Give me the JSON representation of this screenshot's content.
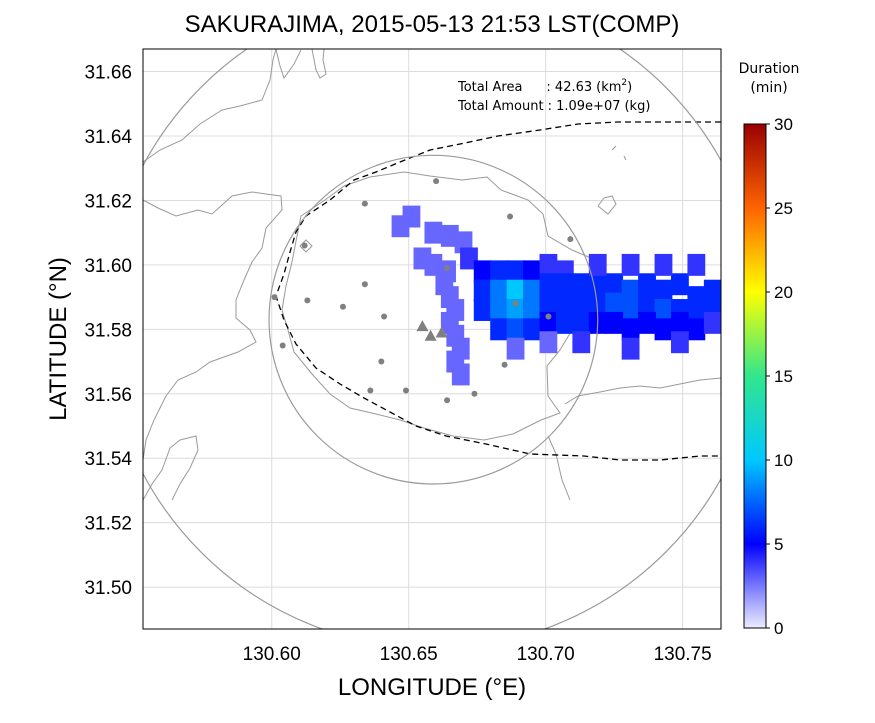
{
  "chart_data": {
    "type": "heatmap",
    "title": "SAKURAJIMA, 2015-05-13 21:53 LST(COMP)",
    "xlabel": "LONGITUDE (°E)",
    "ylabel": "LATITUDE (°N)",
    "xlim": [
      130.553,
      130.764
    ],
    "ylim": [
      31.487,
      31.667
    ],
    "xticks": [
      "130.60",
      "130.65",
      "130.70",
      "130.75"
    ],
    "yticks": [
      "31.50",
      "31.52",
      "31.54",
      "31.56",
      "31.58",
      "31.60",
      "31.62",
      "31.64",
      "31.66"
    ],
    "grid": true,
    "annotations": {
      "area_label": "Total Area",
      "area_value": ": 42.63",
      "area_unit_open": "(km",
      "area_unit_exp": "2",
      "area_unit_close": ")",
      "amount_label": "Total Amount",
      "amount_value": ": 1.09e+07",
      "amount_unit": "(kg)"
    },
    "colorbar": {
      "title_line1": "Duration",
      "title_line2": "(min)",
      "min": 0,
      "max": 30,
      "ticks": [
        "0",
        "5",
        "10",
        "15",
        "20",
        "25",
        "30"
      ]
    },
    "range_circles_center": [
      130.659,
      31.583
    ],
    "inner_radius_deg_lat": 0.051,
    "outer_radius_deg_lat": 0.102,
    "vents": [
      [
        130.655,
        31.581
      ],
      [
        130.658,
        31.578
      ],
      [
        130.662,
        31.579
      ]
    ],
    "stations": [
      [
        130.66,
        31.626
      ],
      [
        130.634,
        31.619
      ],
      [
        130.687,
        31.615
      ],
      [
        130.709,
        31.608
      ],
      [
        130.612,
        31.606
      ],
      [
        130.601,
        31.59
      ],
      [
        130.613,
        31.589
      ],
      [
        130.626,
        31.587
      ],
      [
        130.634,
        31.594
      ],
      [
        130.641,
        31.584
      ],
      [
        130.604,
        31.575
      ],
      [
        130.64,
        31.57
      ],
      [
        130.636,
        31.561
      ],
      [
        130.649,
        31.561
      ],
      [
        130.664,
        31.558
      ],
      [
        130.674,
        31.56
      ],
      [
        130.685,
        31.569
      ],
      [
        130.701,
        31.584
      ],
      [
        130.664,
        31.599
      ],
      [
        130.689,
        31.588
      ]
    ],
    "ash_cells_min": [
      [
        130.647,
        31.612,
        3
      ],
      [
        130.651,
        31.615,
        3
      ],
      [
        130.659,
        31.61,
        3
      ],
      [
        130.665,
        31.609,
        3
      ],
      [
        130.67,
        31.607,
        3
      ],
      [
        130.655,
        31.602,
        3
      ],
      [
        130.659,
        31.6,
        3
      ],
      [
        130.664,
        31.598,
        3
      ],
      [
        130.663,
        31.594,
        3
      ],
      [
        130.665,
        31.59,
        3
      ],
      [
        130.667,
        31.586,
        3
      ],
      [
        130.665,
        31.582,
        3
      ],
      [
        130.667,
        31.578,
        3
      ],
      [
        130.669,
        31.574,
        3
      ],
      [
        130.667,
        31.57,
        3
      ],
      [
        130.669,
        31.566,
        3
      ],
      [
        130.672,
        31.602,
        4
      ],
      [
        130.677,
        31.598,
        5
      ],
      [
        130.683,
        31.598,
        6
      ],
      [
        130.689,
        31.598,
        6
      ],
      [
        130.695,
        31.598,
        5
      ],
      [
        130.701,
        31.6,
        4
      ],
      [
        130.707,
        31.598,
        4
      ],
      [
        130.677,
        31.592,
        6
      ],
      [
        130.683,
        31.592,
        8
      ],
      [
        130.689,
        31.592,
        10
      ],
      [
        130.695,
        31.592,
        8
      ],
      [
        130.701,
        31.594,
        6
      ],
      [
        130.707,
        31.594,
        6
      ],
      [
        130.713,
        31.594,
        6
      ],
      [
        130.677,
        31.586,
        6
      ],
      [
        130.683,
        31.586,
        8
      ],
      [
        130.689,
        31.586,
        9
      ],
      [
        130.695,
        31.586,
        8
      ],
      [
        130.701,
        31.588,
        6
      ],
      [
        130.707,
        31.588,
        6
      ],
      [
        130.713,
        31.588,
        6
      ],
      [
        130.683,
        31.58,
        6
      ],
      [
        130.689,
        31.58,
        7
      ],
      [
        130.695,
        31.58,
        6
      ],
      [
        130.701,
        31.582,
        5
      ],
      [
        130.707,
        31.582,
        6
      ],
      [
        130.713,
        31.582,
        6
      ],
      [
        130.719,
        31.594,
        6
      ],
      [
        130.725,
        31.594,
        6
      ],
      [
        130.731,
        31.592,
        7
      ],
      [
        130.737,
        31.594,
        6
      ],
      [
        130.743,
        31.592,
        6
      ],
      [
        130.749,
        31.594,
        6
      ],
      [
        130.755,
        31.59,
        6
      ],
      [
        130.761,
        31.592,
        6
      ],
      [
        130.719,
        31.588,
        6
      ],
      [
        130.725,
        31.588,
        7
      ],
      [
        130.731,
        31.586,
        7
      ],
      [
        130.737,
        31.588,
        6
      ],
      [
        130.743,
        31.586,
        7
      ],
      [
        130.749,
        31.586,
        6
      ],
      [
        130.755,
        31.584,
        6
      ],
      [
        130.761,
        31.586,
        6
      ],
      [
        130.719,
        31.582,
        5
      ],
      [
        130.725,
        31.582,
        5
      ],
      [
        130.731,
        31.58,
        5
      ],
      [
        130.737,
        31.582,
        5
      ],
      [
        130.743,
        31.58,
        5
      ],
      [
        130.749,
        31.582,
        5
      ],
      [
        130.755,
        31.58,
        5
      ],
      [
        130.761,
        31.582,
        4
      ],
      [
        130.719,
        31.6,
        4
      ],
      [
        130.731,
        31.6,
        4
      ],
      [
        130.743,
        31.6,
        4
      ],
      [
        130.755,
        31.6,
        4
      ],
      [
        130.689,
        31.574,
        3
      ],
      [
        130.701,
        31.576,
        3
      ],
      [
        130.713,
        31.576,
        4
      ],
      [
        130.731,
        31.574,
        4
      ],
      [
        130.749,
        31.576,
        4
      ]
    ]
  }
}
